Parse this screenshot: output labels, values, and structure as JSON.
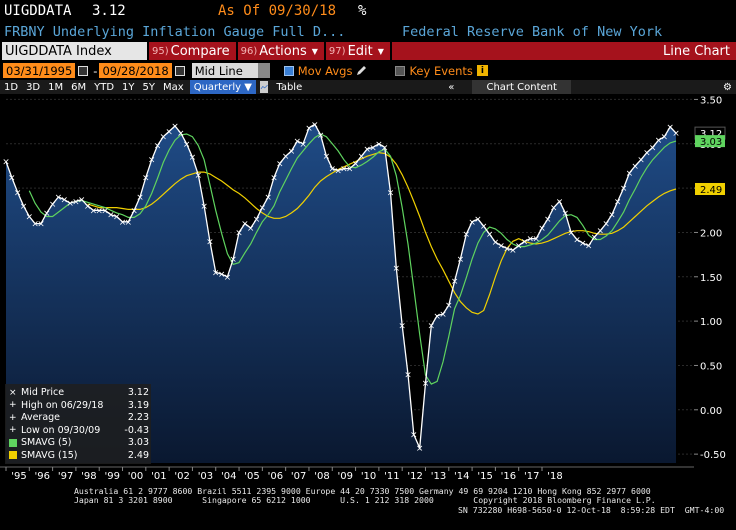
{
  "header": {
    "ticker": "UIGDDATA",
    "last": "3.12",
    "asof": "As Of 09/30/18",
    "unit": "%",
    "description": "FRBNY Underlying Inflation Gauge Full D...",
    "source": "Federal Reserve Bank of New York"
  },
  "toolbar": {
    "index_label": "UIGDDATA Index",
    "buttons": [
      {
        "num": "95)",
        "label": "Compare"
      },
      {
        "num": "96)",
        "label": "Actions"
      },
      {
        "num": "97)",
        "label": "Edit"
      }
    ],
    "chart_type": "Line Chart"
  },
  "controls": {
    "start_date": "03/31/1995",
    "end_date": "09/28/2018",
    "price_field": "Mid Line",
    "mov_avgs_label": "Mov Avgs",
    "key_events_label": "Key Events"
  },
  "periods": [
    "1D",
    "3D",
    "1M",
    "6M",
    "YTD",
    "1Y",
    "5Y",
    "Max"
  ],
  "frequency": "Quarterly",
  "table_label": "Table",
  "chart_content_label": "Chart Content",
  "nav_arrows": "«",
  "gear_glyph": "⚙",
  "legend": {
    "items": [
      {
        "label": "Mid Price",
        "value": "3.12",
        "marker": "×",
        "color": "#ffffff"
      },
      {
        "label": "High on 06/29/18",
        "value": "3.19",
        "marker": "+",
        "color": "#ffffff"
      },
      {
        "label": "Average",
        "value": "2.23",
        "marker": "+",
        "color": "#ffffff"
      },
      {
        "label": "Low on 09/30/09",
        "value": "-0.43",
        "marker": "+",
        "color": "#ffffff"
      },
      {
        "label": "SMAVG (5)",
        "value": "3.03",
        "marker": "■",
        "color": "#5fd35f"
      },
      {
        "label": "SMAVG (15)",
        "value": "2.49",
        "marker": "■",
        "color": "#f0d000"
      }
    ]
  },
  "footer": {
    "line1": "Australia 61 2 9777 8600 Brazil 5511 2395 9000 Europe 44 20 7330 7500 Germany 49 69 9204 1210 Hong Kong 852 2977 6000",
    "line2": "Japan 81 3 3201 8900      Singapore 65 6212 1000      U.S. 1 212 318 2000        Copyright 2018 Bloomberg Finance L.P.",
    "line3": "SN 732280 H698-5650-0 12-Oct-18  8:59:28 EDT  GMT-4:00"
  },
  "chart_data": {
    "type": "line",
    "ylim": [
      -0.6,
      3.55
    ],
    "yticks": [
      "3.50",
      "3.00",
      "2.50",
      "2.00",
      "1.50",
      "1.00",
      "0.50",
      "0.00",
      "-0.50"
    ],
    "ytick_values": [
      3.5,
      3.0,
      2.5,
      2.0,
      1.5,
      1.0,
      0.5,
      0.0,
      -0.5
    ],
    "xtick_labels": [
      "'95",
      "'96",
      "'97",
      "'98",
      "'99",
      "'00",
      "'01",
      "'02",
      "'03",
      "'04",
      "'05",
      "'06",
      "'07",
      "'08",
      "'09",
      "'10",
      "'11",
      "'12",
      "'13",
      "'14",
      "'15",
      "'16",
      "'17",
      "'18"
    ],
    "last_value_labels": [
      {
        "text": "3.12",
        "value": 3.12,
        "bg": "#000000",
        "fg": "#ffffff"
      },
      {
        "text": "3.03",
        "value": 3.03,
        "bg": "#5fd35f",
        "fg": "#000000"
      },
      {
        "text": "2.49",
        "value": 2.49,
        "bg": "#f0d000",
        "fg": "#000000"
      }
    ],
    "start": "1995Q1",
    "series": [
      {
        "name": "Mid Price",
        "color": "#ffffff",
        "values": [
          2.8,
          2.62,
          2.45,
          2.3,
          2.18,
          2.1,
          2.1,
          2.22,
          2.32,
          2.4,
          2.37,
          2.33,
          2.35,
          2.37,
          2.3,
          2.25,
          2.25,
          2.25,
          2.2,
          2.18,
          2.12,
          2.12,
          2.25,
          2.4,
          2.62,
          2.82,
          2.98,
          3.08,
          3.14,
          3.2,
          3.12,
          3.0,
          2.85,
          2.65,
          2.3,
          1.9,
          1.55,
          1.53,
          1.5,
          1.7,
          2.0,
          2.1,
          2.05,
          2.15,
          2.28,
          2.4,
          2.62,
          2.78,
          2.86,
          2.92,
          3.03,
          3.0,
          3.18,
          3.22,
          3.1,
          2.86,
          2.72,
          2.7,
          2.72,
          2.72,
          2.78,
          2.86,
          2.94,
          2.96,
          3.0,
          2.96,
          2.45,
          1.6,
          0.95,
          0.4,
          -0.28,
          -0.43,
          0.3,
          0.95,
          1.06,
          1.08,
          1.18,
          1.45,
          1.7,
          1.98,
          2.12,
          2.15,
          2.07,
          1.98,
          1.89,
          1.85,
          1.82,
          1.8,
          1.85,
          1.9,
          1.93,
          1.93,
          2.05,
          2.15,
          2.28,
          2.35,
          2.22,
          2.0,
          1.92,
          1.88,
          1.85,
          1.95,
          2.02,
          2.1,
          2.2,
          2.35,
          2.5,
          2.67,
          2.75,
          2.82,
          2.9,
          2.96,
          3.04,
          3.08,
          3.19,
          3.12
        ]
      },
      {
        "name": "SMAVG (5)",
        "color": "#5fd35f",
        "values": [
          null,
          null,
          null,
          null,
          2.47,
          2.33,
          2.23,
          2.18,
          2.18,
          2.23,
          2.28,
          2.33,
          2.35,
          2.36,
          2.34,
          2.32,
          2.3,
          2.28,
          2.25,
          2.22,
          2.2,
          2.17,
          2.17,
          2.21,
          2.3,
          2.44,
          2.61,
          2.79,
          2.93,
          3.04,
          3.1,
          3.11,
          3.08,
          2.98,
          2.82,
          2.54,
          2.25,
          1.99,
          1.76,
          1.64,
          1.66,
          1.77,
          1.87,
          2.0,
          2.12,
          2.2,
          2.3,
          2.46,
          2.59,
          2.72,
          2.84,
          2.92,
          3.0,
          3.07,
          3.11,
          3.08,
          3.0,
          2.92,
          2.82,
          2.74,
          2.73,
          2.76,
          2.8,
          2.85,
          2.91,
          2.94,
          2.86,
          2.64,
          2.28,
          1.87,
          1.37,
          0.85,
          0.39,
          0.29,
          0.32,
          0.54,
          0.83,
          1.14,
          1.29,
          1.49,
          1.7,
          1.88,
          2.0,
          2.06,
          2.04,
          1.99,
          1.92,
          1.87,
          1.84,
          1.84,
          1.86,
          1.88,
          1.92,
          1.97,
          2.05,
          2.13,
          2.19,
          2.2,
          2.17,
          2.08,
          1.97,
          1.92,
          1.92,
          1.96,
          2.02,
          2.12,
          2.23,
          2.37,
          2.49,
          2.62,
          2.73,
          2.82,
          2.89,
          2.96,
          3.01,
          3.03
        ]
      },
      {
        "name": "SMAVG (15)",
        "color": "#f0d000",
        "values": [
          null,
          null,
          null,
          null,
          null,
          null,
          null,
          null,
          null,
          null,
          null,
          null,
          null,
          null,
          2.32,
          2.3,
          2.28,
          2.28,
          2.28,
          2.28,
          2.27,
          2.26,
          2.26,
          2.26,
          2.28,
          2.32,
          2.37,
          2.43,
          2.49,
          2.55,
          2.6,
          2.64,
          2.66,
          2.68,
          2.68,
          2.66,
          2.62,
          2.58,
          2.53,
          2.48,
          2.44,
          2.39,
          2.33,
          2.27,
          2.22,
          2.18,
          2.16,
          2.16,
          2.18,
          2.22,
          2.27,
          2.34,
          2.42,
          2.51,
          2.58,
          2.63,
          2.67,
          2.71,
          2.74,
          2.77,
          2.8,
          2.83,
          2.86,
          2.88,
          2.9,
          2.89,
          2.85,
          2.77,
          2.65,
          2.51,
          2.35,
          2.18,
          2.0,
          1.84,
          1.7,
          1.58,
          1.45,
          1.32,
          1.22,
          1.15,
          1.1,
          1.08,
          1.12,
          1.3,
          1.5,
          1.68,
          1.82,
          1.9,
          1.93,
          1.9,
          1.88,
          1.87,
          1.88,
          1.9,
          1.93,
          1.96,
          1.99,
          2.01,
          2.02,
          2.02,
          2.01,
          1.99,
          1.98,
          1.98,
          1.99,
          2.02,
          2.06,
          2.12,
          2.18,
          2.24,
          2.3,
          2.35,
          2.4,
          2.44,
          2.47,
          2.49
        ]
      }
    ]
  }
}
